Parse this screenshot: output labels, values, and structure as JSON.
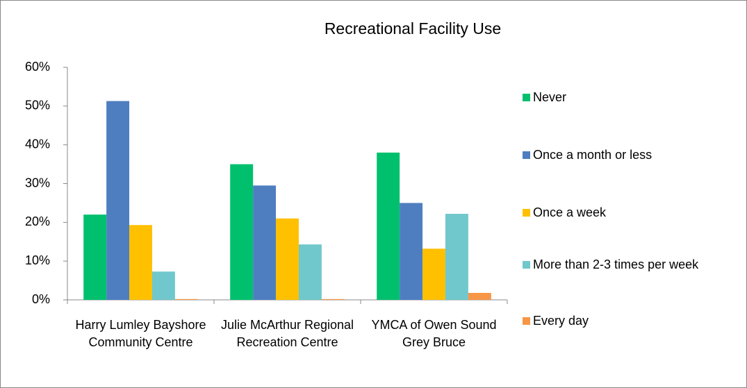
{
  "chart_data": {
    "type": "bar",
    "title": "Recreational Facility Use",
    "categories": [
      "Harry Lumley Bayshore Community Centre",
      "Julie McArthur Regional Recreation Centre",
      "YMCA of Owen Sound Grey Bruce"
    ],
    "series": [
      {
        "name": "Never",
        "color": "#00c06e",
        "values": [
          22,
          35,
          38
        ]
      },
      {
        "name": "Once a month or less",
        "color": "#4f7ec0",
        "values": [
          51.3,
          29.5,
          25
        ]
      },
      {
        "name": "Once a week",
        "color": "#ffc000",
        "values": [
          19.3,
          21,
          13.2
        ]
      },
      {
        "name": "More than 2-3 times per week",
        "color": "#70c8cc",
        "values": [
          7.3,
          14.3,
          22.2
        ]
      },
      {
        "name": "Every day",
        "color": "#f79646",
        "values": [
          0.2,
          0.2,
          1.8
        ]
      }
    ],
    "ylim": [
      0,
      60
    ],
    "yticks": [
      {
        "value": 0,
        "label": "0%"
      },
      {
        "value": 10,
        "label": "10%"
      },
      {
        "value": 20,
        "label": "20%"
      },
      {
        "value": 30,
        "label": "30%"
      },
      {
        "value": 40,
        "label": "40%"
      },
      {
        "value": 50,
        "label": "50%"
      },
      {
        "value": 60,
        "label": "60%"
      }
    ],
    "grid": false,
    "legend": "right"
  }
}
